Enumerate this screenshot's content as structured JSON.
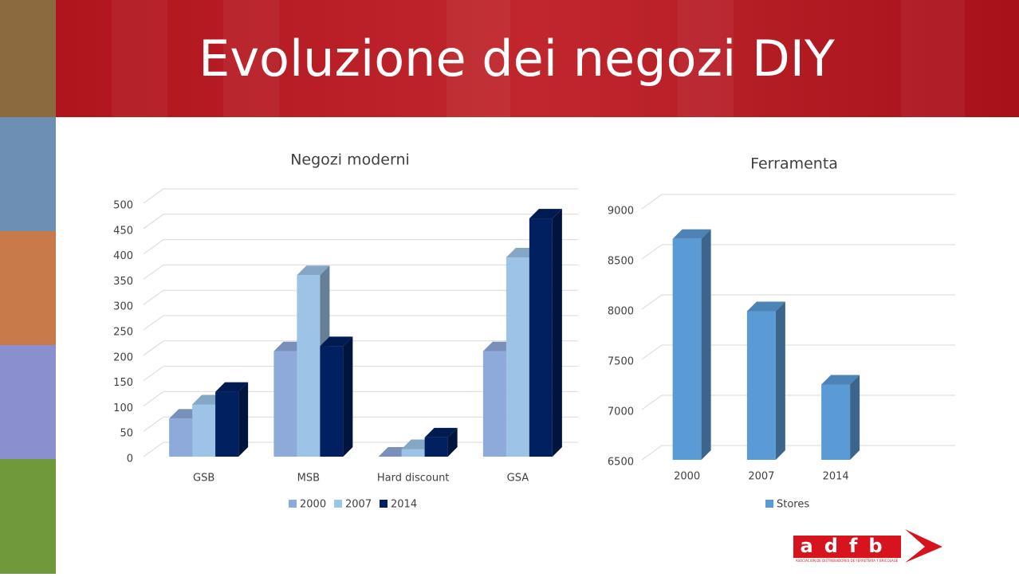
{
  "title": "Evoluzione dei negozi DIY",
  "logo": {
    "name": "adfb",
    "tagline": "ASOCIACION DE DISTRIBUIDORES DE FERRETERIA Y BRICOLAGE"
  },
  "chart_data": [
    {
      "type": "bar",
      "title": "Negozi moderni",
      "categories": [
        "GSB",
        "MSB",
        "Hard discount",
        "GSA"
      ],
      "series": [
        {
          "name": "2000",
          "color": "#8eaadb",
          "values": [
            75,
            208,
            0,
            208
          ]
        },
        {
          "name": "2007",
          "color": "#9dc3e6",
          "values": [
            103,
            358,
            15,
            393
          ]
        },
        {
          "name": "2014",
          "color": "#002060",
          "values": [
            128,
            218,
            38,
            470
          ]
        }
      ],
      "ylim": [
        0,
        500
      ],
      "yticks": [
        0,
        50,
        100,
        150,
        200,
        250,
        300,
        350,
        400,
        450,
        500
      ],
      "grid": true,
      "legend": "bottom"
    },
    {
      "type": "bar",
      "title": "Ferramenta",
      "categories": [
        "2000",
        "2007",
        "2014"
      ],
      "series": [
        {
          "name": "Stores",
          "color": "#5b9bd5",
          "values": [
            8700,
            7980,
            7250
          ]
        }
      ],
      "ylim": [
        6500,
        9000
      ],
      "yticks": [
        6500,
        7000,
        7500,
        8000,
        8500,
        9000
      ],
      "grid": true,
      "legend": "bottom"
    }
  ]
}
